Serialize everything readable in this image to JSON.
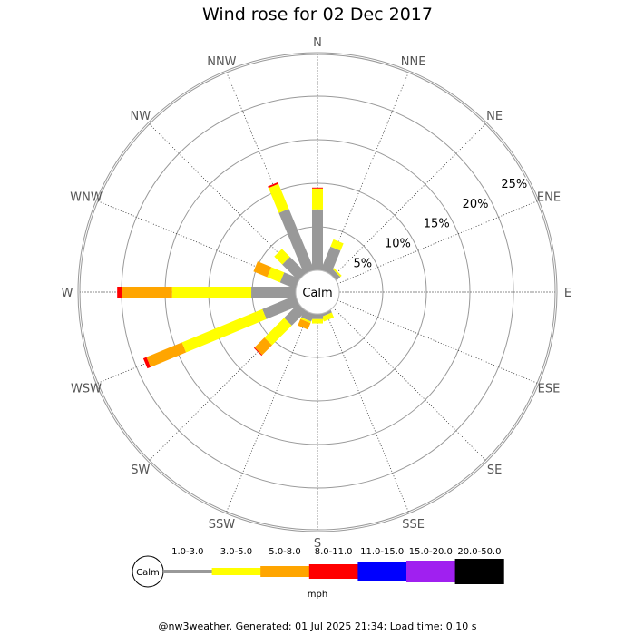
{
  "title": "Wind rose for 02 Dec 2017",
  "footer": "@nw3weather. Generated: 01 Jul 2025 21:34; Load time: 0.10 s",
  "chart_data": {
    "type": "wind-rose",
    "title": "Wind rose for 02 Dec 2017",
    "calm_label": "Calm",
    "directions": [
      "N",
      "NNE",
      "NE",
      "ENE",
      "E",
      "ESE",
      "SE",
      "SSE",
      "S",
      "SSW",
      "SW",
      "WSW",
      "W",
      "WNW",
      "NW",
      "NNW"
    ],
    "ring_labels": [
      "5%",
      "10%",
      "15%",
      "20%",
      "25%"
    ],
    "ring_values": [
      5,
      10,
      15,
      20,
      25
    ],
    "grid": true,
    "unit_label": "mph",
    "speed_bins": [
      {
        "label": "1.0-3.0",
        "color": "#999999"
      },
      {
        "label": "3.0-5.0",
        "color": "#ffff00"
      },
      {
        "label": "5.0-8.0",
        "color": "#ffa500"
      },
      {
        "label": "8.0-11.0",
        "color": "#ff0000"
      },
      {
        "label": "11.0-15.0",
        "color": "#0000ff"
      },
      {
        "label": "15.0-20.0",
        "color": "#a020f0"
      },
      {
        "label": "20.0-50.0",
        "color": "#000000"
      }
    ],
    "series": [
      {
        "direction": "N",
        "values": [
          7.0,
          2.4,
          0,
          0.1,
          0,
          0,
          0
        ]
      },
      {
        "direction": "NNE",
        "values": [
          2.9,
          0.9,
          0,
          0,
          0,
          0,
          0
        ]
      },
      {
        "direction": "NE",
        "values": [
          0.6,
          0.2,
          0,
          0,
          0,
          0,
          0
        ]
      },
      {
        "direction": "ENE",
        "values": [
          0,
          0,
          0,
          0,
          0,
          0,
          0
        ]
      },
      {
        "direction": "E",
        "values": [
          0,
          0,
          0,
          0,
          0,
          0,
          0
        ]
      },
      {
        "direction": "ESE",
        "values": [
          0,
          0,
          0,
          0,
          0,
          0,
          0
        ]
      },
      {
        "direction": "SE",
        "values": [
          0,
          0,
          0,
          0,
          0,
          0,
          0
        ]
      },
      {
        "direction": "SSE",
        "values": [
          0.3,
          0.6,
          0,
          0,
          0,
          0,
          0
        ]
      },
      {
        "direction": "S",
        "values": [
          0.6,
          0.5,
          0,
          0,
          0,
          0,
          0
        ]
      },
      {
        "direction": "SSW",
        "values": [
          0.9,
          0.2,
          0.8,
          0,
          0,
          0,
          0
        ]
      },
      {
        "direction": "SW",
        "values": [
          2.3,
          3.2,
          1.6,
          0.1,
          0,
          0,
          0
        ]
      },
      {
        "direction": "WSW",
        "values": [
          4.1,
          10.0,
          4.4,
          0.4,
          0,
          0,
          0
        ]
      },
      {
        "direction": "W",
        "values": [
          5.1,
          9.1,
          5.8,
          0.5,
          0,
          0,
          0
        ]
      },
      {
        "direction": "WNW",
        "values": [
          1.9,
          1.6,
          1.7,
          0,
          0,
          0,
          0
        ]
      },
      {
        "direction": "NW",
        "values": [
          2.6,
          1.3,
          0,
          0,
          0,
          0,
          0
        ]
      },
      {
        "direction": "NNW",
        "values": [
          7.6,
          3.1,
          0,
          0.2,
          0,
          0,
          0
        ]
      }
    ]
  }
}
